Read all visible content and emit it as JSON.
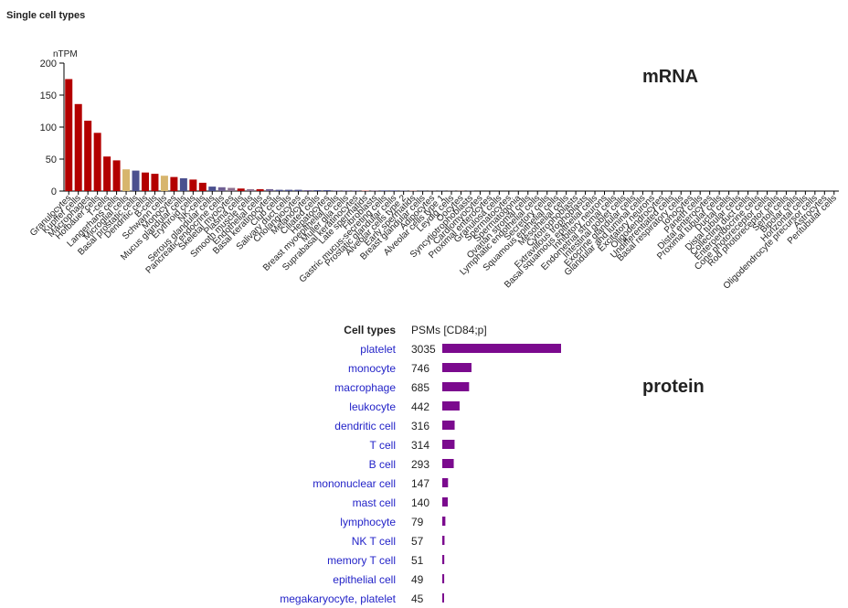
{
  "chart_data": [
    {
      "type": "bar",
      "title": "Single cell types",
      "ylabel": "nTPM",
      "annotation": "mRNA",
      "categories": [
        "Granulocytes",
        "Kupffer cells",
        "Macrophages",
        "Hofbauer cells",
        "T-cells",
        "Langerhans cells",
        "Microglial cells",
        "Basal prostatic cells",
        "Dendritic cells",
        "B-cells",
        "Schwann cells",
        "Monocytes",
        "Mucus glandular cells",
        "Erythroid cells",
        "NK-cells",
        "Serous glandular cells",
        "Pancreatic endocrine cells",
        "Skeletal myocytes",
        "Plasma cells",
        "Smooth muscle cells",
        "Endothelial cells",
        "Basal keratinocytes",
        "Club cells",
        "Salivary duct cells",
        "Cholangiocytes",
        "Melanocytes",
        "Ciliated cells",
        "Hepatocytes",
        "Breast myoepithelial cells",
        "Muller glia cells",
        "Suprabasal keratinocytes",
        "Late spermatids",
        "Fibroblasts",
        "Gastric mucus-secreting cells",
        "Prostatic glandular cells",
        "Alveolar cells type 2",
        "Early spermatids",
        "Breast glandular cells",
        "Adipocytes",
        "Alveolar cells type 1",
        "Leydig cells",
        "Oocytes",
        "Syncytiotrophoblasts",
        "Cardiomyocytes",
        "Proximal enterocytes",
        "Granulosa cells",
        "Spermatocytes",
        "Spermatogonia",
        "Ovarian stromal cells",
        "Lymphatic endothelial cells",
        "Secretory cells",
        "Squamous epithelial cells",
        "Mesothelial cells",
        "Cytotrophoblasts",
        "Extravillous trophoblasts",
        "Basal squamous epithelial cells",
        "Inhibitory neurons",
        "Endometrial stromal cells",
        "Intestinal goblet cells",
        "Exocrine glandular cells",
        "Glandular and luminal cells",
        "Excitatory neurons",
        "Oligodendrocytes",
        "Undifferentiated cells",
        "Basal respiratory cells",
        "Ionocytes",
        "Paneth cells",
        "Distal enterocytes",
        "Proximal tubular cells",
        "Ductal cells",
        "Distal tubular cells",
        "Collecting duct cells",
        "Enteroendocrine cells",
        "Cone photoreceptor cells",
        "Rod photoreceptor cells",
        "Sertoli cells",
        "Bipolar cells",
        "Horizontal cells",
        "Oligodendrocyte precursor cells",
        "Astrocytes",
        "Peritubular cells"
      ],
      "values": [
        175,
        136,
        110,
        91,
        54,
        48,
        34,
        32,
        29,
        27,
        24,
        22,
        20,
        18,
        13,
        7,
        6,
        5,
        4,
        3,
        3,
        3,
        2,
        2,
        2,
        1.5,
        1.5,
        1.5,
        1,
        1,
        1,
        1,
        1,
        1,
        1,
        0.5,
        0.5,
        0.3,
        0.3,
        0.3,
        0.3,
        0.3,
        0.3,
        0,
        0,
        0,
        0,
        0,
        0,
        0,
        0,
        0,
        0,
        0,
        0,
        0,
        0,
        0,
        0,
        0,
        0,
        0,
        0,
        0,
        0,
        0,
        0,
        0,
        0,
        0,
        0,
        0,
        0,
        0,
        0,
        0,
        0,
        0,
        0,
        0,
        0
      ],
      "colors": [
        "#b30000",
        "#b30000",
        "#b30000",
        "#b30000",
        "#b30000",
        "#b30000",
        "#d7b56d",
        "#4b508f",
        "#b30000",
        "#b30000",
        "#d7b56d",
        "#b30000",
        "#4b508f",
        "#b30000",
        "#b30000",
        "#4b508f",
        "#6f5f93",
        "#8c6f8f",
        "#b30000",
        "#8c6f8f",
        "#b30000",
        "#6f5f93",
        "#4b508f",
        "#4b508f",
        "#4b508f",
        "#6f5f93",
        "#4b508f",
        "#4b508f",
        "#6f5f93",
        "#6f5f93",
        "#6f5f93",
        "#d77f7f",
        "#8c6f8f",
        "#4b508f",
        "#4b508f",
        "#4b508f",
        "#d77f7f",
        "#4b508f",
        "#8c6f8f",
        "#4b508f",
        "#8c6f8f",
        "#d77f7f",
        "#6f5f93",
        "#8c6f8f",
        "#4b508f",
        "#8c6f8f",
        "#d77f7f",
        "#d77f7f",
        "#8c6f8f",
        "#b30000",
        "#4b508f",
        "#6f5f93",
        "#8c6f8f",
        "#6f5f93",
        "#6f5f93",
        "#6f5f93",
        "#d7b56d",
        "#8c6f8f",
        "#4b508f",
        "#4b508f",
        "#4b508f",
        "#d7b56d",
        "#d7b56d",
        "#4b508f",
        "#4b508f",
        "#4b508f",
        "#4b508f",
        "#4b508f",
        "#4b508f",
        "#4b508f",
        "#4b508f",
        "#4b508f",
        "#4b508f",
        "#d7b56d",
        "#d7b56d",
        "#d77f7f",
        "#d7b56d",
        "#d7b56d",
        "#d7b56d",
        "#d7b56d",
        "#8c6f8f"
      ],
      "ylim": [
        0,
        200
      ],
      "yticks": [
        0,
        50,
        100,
        150,
        200
      ]
    },
    {
      "type": "bar_table",
      "annotation": "protein",
      "header": [
        "Cell types",
        "PSMs [CD84;p]"
      ],
      "color": "#7b0a8e",
      "categories": [
        "platelet",
        "monocyte",
        "macrophage",
        "leukocyte",
        "dendritic cell",
        "T cell",
        "B cell",
        "mononuclear cell",
        "mast cell",
        "lymphocyte",
        "NK T cell",
        "memory T cell",
        "epithelial cell",
        "megakaryocyte, platelet"
      ],
      "values": [
        3035,
        746,
        685,
        442,
        316,
        314,
        293,
        147,
        140,
        79,
        57,
        51,
        49,
        45
      ]
    }
  ]
}
